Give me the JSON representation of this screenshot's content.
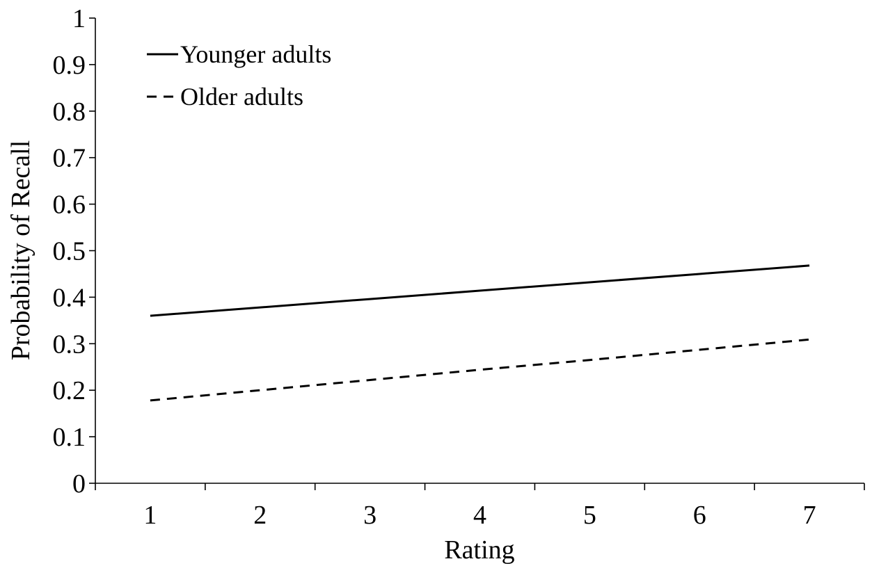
{
  "chart_data": {
    "type": "line",
    "title": "",
    "xlabel": "Rating",
    "ylabel": "Probability of Recall",
    "x": [
      1,
      2,
      3,
      4,
      5,
      6,
      7
    ],
    "x_tick_labels": [
      "1",
      "2",
      "3",
      "4",
      "5",
      "6",
      "7"
    ],
    "y_tick_labels": [
      "0",
      "0.1",
      "0.2",
      "0.3",
      "0.4",
      "0.5",
      "0.6",
      "0.7",
      "0.8",
      "0.9",
      "1"
    ],
    "ylim": [
      0,
      1
    ],
    "xlim": [
      0.5,
      7.5
    ],
    "grid": false,
    "legend_position": "top-left",
    "series": [
      {
        "name": "Younger adults",
        "style": "solid",
        "color": "#000000",
        "values": [
          0.36,
          0.378,
          0.396,
          0.414,
          0.432,
          0.45,
          0.468
        ]
      },
      {
        "name": "Older adults",
        "style": "dashed",
        "color": "#000000",
        "values": [
          0.178,
          0.2,
          0.222,
          0.244,
          0.265,
          0.287,
          0.309
        ]
      }
    ]
  }
}
